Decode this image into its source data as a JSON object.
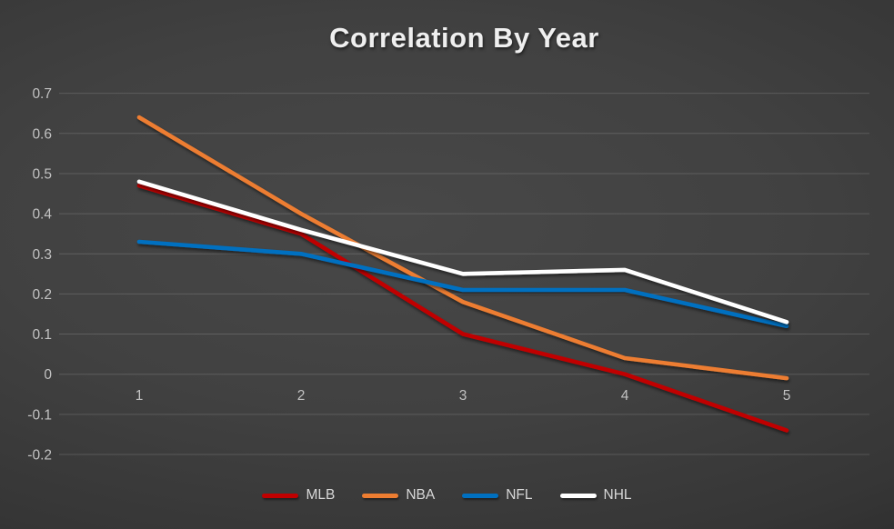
{
  "title": "Correlation By Year",
  "chart_data": {
    "type": "line",
    "title": "Correlation By Year",
    "categories": [
      "1",
      "2",
      "3",
      "4",
      "5"
    ],
    "series": [
      {
        "name": "MLB",
        "color": "#c00000",
        "values": [
          0.47,
          0.35,
          0.1,
          0.0,
          -0.14
        ]
      },
      {
        "name": "NBA",
        "color": "#ed7d31",
        "values": [
          0.64,
          0.4,
          0.18,
          0.04,
          -0.01
        ]
      },
      {
        "name": "NFL",
        "color": "#0070c0",
        "values": [
          0.33,
          0.3,
          0.21,
          0.21,
          0.12
        ]
      },
      {
        "name": "NHL",
        "color": "#ffffff",
        "values": [
          0.48,
          0.36,
          0.25,
          0.26,
          0.13
        ]
      }
    ],
    "xlabel": "",
    "ylabel": "",
    "ylim": [
      -0.2,
      0.7
    ],
    "ytick_step": 0.1,
    "ytick_labels": [
      "0.7",
      "0.6",
      "0.5",
      "0.4",
      "0.3",
      "0.2",
      "0.1",
      "0",
      "-0.1",
      "-0.2"
    ],
    "grid": true,
    "legend_position": "bottom",
    "style": {
      "background_center": "#484848",
      "background_edge": "#232323",
      "gridline_color": "rgba(255,255,255,0.15)",
      "tick_label_color": "#c2c2c2",
      "title_color": "#efefef",
      "legend_label_color": "#d8d8d8"
    }
  }
}
